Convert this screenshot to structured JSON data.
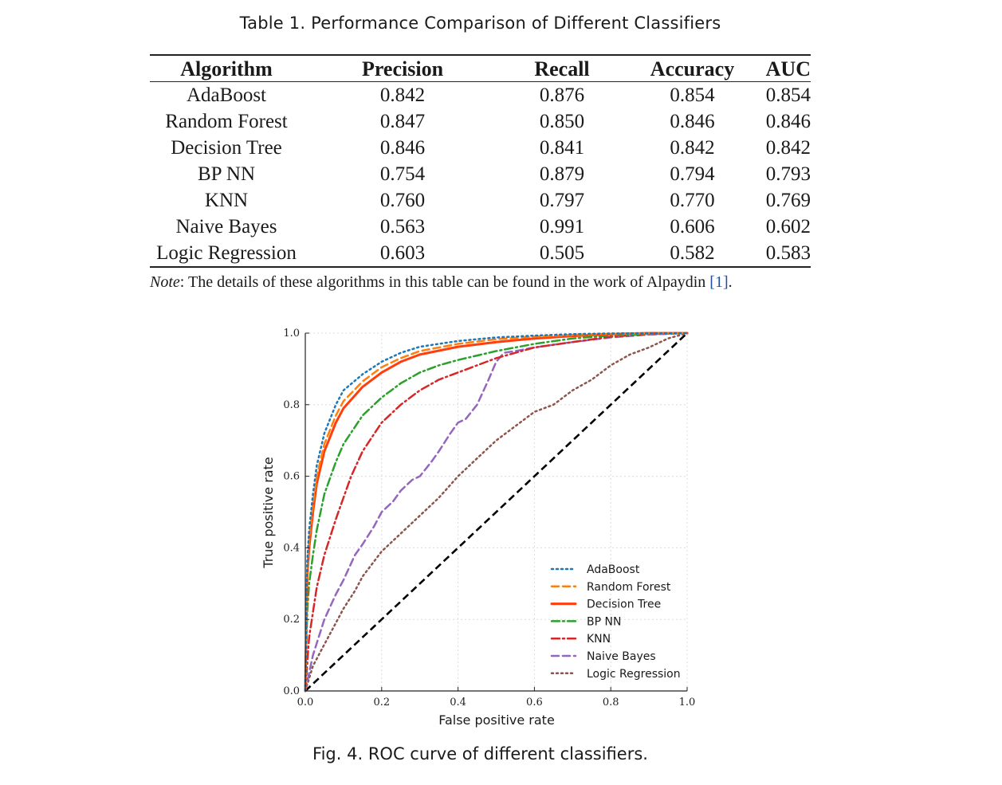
{
  "table": {
    "caption": "Table 1.  Performance Comparison of Different Classifiers",
    "headers": [
      "Algorithm",
      "Precision",
      "Recall",
      "Accuracy",
      "AUC"
    ],
    "rows": [
      [
        "AdaBoost",
        "0.842",
        "0.876",
        "0.854",
        "0.854"
      ],
      [
        "Random Forest",
        "0.847",
        "0.850",
        "0.846",
        "0.846"
      ],
      [
        "Decision Tree",
        "0.846",
        "0.841",
        "0.842",
        "0.842"
      ],
      [
        "BP NN",
        "0.754",
        "0.879",
        "0.794",
        "0.793"
      ],
      [
        "KNN",
        "0.760",
        "0.797",
        "0.770",
        "0.769"
      ],
      [
        "Naive Bayes",
        "0.563",
        "0.991",
        "0.606",
        "0.602"
      ],
      [
        "Logic Regression",
        "0.603",
        "0.505",
        "0.582",
        "0.583"
      ]
    ],
    "note_lead": "Note",
    "note_text": ": The details of these algorithms in this table can be found in the work of Alpaydin ",
    "note_ref": "[1]",
    "note_end": "."
  },
  "figure": {
    "caption": "Fig. 4.  ROC curve of different classifiers."
  },
  "chart_data": {
    "type": "line",
    "title": "",
    "xlabel": "False positive rate",
    "ylabel": "True positive rate",
    "xlim": [
      0,
      1
    ],
    "ylim": [
      0,
      1
    ],
    "xticks": [
      "0.0",
      "0.2",
      "0.4",
      "0.6",
      "0.8",
      "1.0"
    ],
    "yticks": [
      "0.0",
      "0.2",
      "0.4",
      "0.6",
      "0.8",
      "1.0"
    ],
    "grid": true,
    "legend_position": "bottom-right",
    "series": [
      {
        "name": "AdaBoost",
        "color": "#1f77b4",
        "style": "dotted",
        "x": [
          0,
          0.005,
          0.01,
          0.02,
          0.03,
          0.05,
          0.08,
          0.1,
          0.15,
          0.2,
          0.25,
          0.3,
          0.4,
          0.5,
          0.6,
          0.7,
          0.8,
          0.9,
          1.0
        ],
        "y": [
          0,
          0.36,
          0.45,
          0.55,
          0.63,
          0.72,
          0.8,
          0.84,
          0.885,
          0.92,
          0.945,
          0.962,
          0.978,
          0.988,
          0.993,
          0.997,
          0.999,
          1.0,
          1.0
        ]
      },
      {
        "name": "Random Forest",
        "color": "#ff7f0e",
        "style": "dashed",
        "x": [
          0,
          0.005,
          0.01,
          0.02,
          0.03,
          0.05,
          0.08,
          0.1,
          0.15,
          0.2,
          0.25,
          0.3,
          0.4,
          0.5,
          0.6,
          0.7,
          0.8,
          0.9,
          1.0
        ],
        "y": [
          0,
          0.33,
          0.42,
          0.52,
          0.6,
          0.69,
          0.77,
          0.81,
          0.865,
          0.905,
          0.93,
          0.95,
          0.97,
          0.983,
          0.99,
          0.995,
          0.998,
          1.0,
          1.0
        ]
      },
      {
        "name": "Decision Tree",
        "color": "#ff3d0d",
        "style": "solid",
        "x": [
          0,
          0.005,
          0.01,
          0.02,
          0.03,
          0.05,
          0.08,
          0.1,
          0.15,
          0.2,
          0.25,
          0.3,
          0.4,
          0.5,
          0.6,
          0.7,
          0.8,
          0.9,
          1.0
        ],
        "y": [
          0,
          0.32,
          0.4,
          0.5,
          0.58,
          0.67,
          0.75,
          0.79,
          0.85,
          0.89,
          0.92,
          0.94,
          0.962,
          0.975,
          0.985,
          0.992,
          0.997,
          1.0,
          1.0
        ]
      },
      {
        "name": "BP NN",
        "color": "#2ca02c",
        "style": "dashdot",
        "x": [
          0,
          0.005,
          0.01,
          0.02,
          0.03,
          0.05,
          0.08,
          0.1,
          0.15,
          0.2,
          0.25,
          0.3,
          0.35,
          0.4,
          0.5,
          0.6,
          0.7,
          0.8,
          0.9,
          1.0
        ],
        "y": [
          0,
          0.22,
          0.3,
          0.38,
          0.45,
          0.55,
          0.64,
          0.69,
          0.77,
          0.82,
          0.86,
          0.89,
          0.91,
          0.925,
          0.95,
          0.97,
          0.985,
          0.993,
          0.998,
          1.0
        ]
      },
      {
        "name": "KNN",
        "color": "#d62728",
        "style": "dashdot",
        "x": [
          0,
          0.01,
          0.02,
          0.03,
          0.05,
          0.08,
          0.1,
          0.12,
          0.15,
          0.2,
          0.25,
          0.3,
          0.35,
          0.4,
          0.45,
          0.5,
          0.6,
          0.7,
          0.8,
          0.9,
          1.0
        ],
        "y": [
          0,
          0.15,
          0.22,
          0.29,
          0.38,
          0.48,
          0.54,
          0.6,
          0.67,
          0.75,
          0.8,
          0.84,
          0.87,
          0.89,
          0.91,
          0.93,
          0.96,
          0.975,
          0.99,
          0.997,
          1.0
        ]
      },
      {
        "name": "Naive Bayes",
        "color": "#9467bd",
        "style": "dashed",
        "x": [
          0,
          0.02,
          0.05,
          0.08,
          0.1,
          0.13,
          0.15,
          0.18,
          0.2,
          0.23,
          0.25,
          0.28,
          0.3,
          0.33,
          0.35,
          0.38,
          0.4,
          0.42,
          0.45,
          0.48,
          0.5,
          0.52,
          0.55,
          0.6,
          0.7,
          0.8,
          0.9,
          1.0
        ],
        "y": [
          0,
          0.1,
          0.2,
          0.27,
          0.31,
          0.38,
          0.41,
          0.46,
          0.5,
          0.53,
          0.56,
          0.59,
          0.6,
          0.64,
          0.67,
          0.72,
          0.75,
          0.76,
          0.8,
          0.87,
          0.92,
          0.945,
          0.95,
          0.96,
          0.975,
          0.988,
          0.996,
          1.0
        ]
      },
      {
        "name": "Logic Regression",
        "color": "#8c564b",
        "style": "dotted",
        "x": [
          0,
          0.02,
          0.05,
          0.08,
          0.1,
          0.13,
          0.15,
          0.2,
          0.25,
          0.3,
          0.35,
          0.4,
          0.42,
          0.45,
          0.5,
          0.55,
          0.6,
          0.65,
          0.7,
          0.75,
          0.8,
          0.85,
          0.9,
          0.95,
          1.0
        ],
        "y": [
          0,
          0.07,
          0.13,
          0.19,
          0.23,
          0.28,
          0.32,
          0.39,
          0.44,
          0.49,
          0.54,
          0.6,
          0.62,
          0.65,
          0.7,
          0.74,
          0.78,
          0.8,
          0.84,
          0.87,
          0.91,
          0.94,
          0.96,
          0.985,
          1.0
        ]
      }
    ],
    "reference_line": {
      "x": [
        0,
        1
      ],
      "y": [
        0,
        1
      ],
      "color": "#000000",
      "style": "dashed"
    }
  }
}
